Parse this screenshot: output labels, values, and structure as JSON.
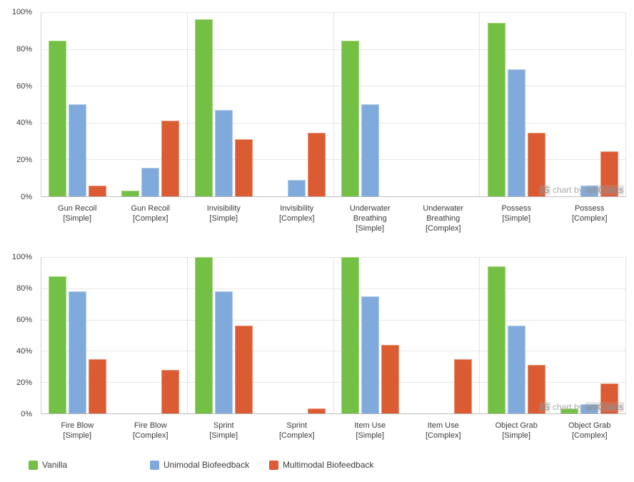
{
  "colors": {
    "vanilla": "#74C044",
    "vanilla_border": "#A2D77D",
    "unimodal": "#80AADB",
    "unimodal_border": "#B0CCEB",
    "multimodal": "#DB5B33",
    "multimodal_border": "#EA9473"
  },
  "legend": [
    {
      "label": "Vanilla",
      "color": "#74C044"
    },
    {
      "label": "Unimodal Biofeedback",
      "color": "#80AADB"
    },
    {
      "label": "Multimodal Biofeedback",
      "color": "#DB5B33"
    }
  ],
  "watermark": {
    "prefix": "JS",
    "middle": " chart by ",
    "suffix": "amCharts"
  },
  "y_axis": {
    "tick_labels": [
      "0%",
      "20%",
      "40%",
      "60%",
      "80%",
      "100%"
    ],
    "tick_step": 20
  },
  "chart_data": [
    {
      "type": "bar",
      "title": "",
      "xlabel": "",
      "ylabel": "",
      "ylim": [
        0,
        100
      ],
      "tick_step": 20,
      "tick_suffix": "%",
      "grid": true,
      "group_separator_every": 2,
      "legend_position": "bottom",
      "categories": [
        "Gun Recoil\n[Simple]",
        "Gun Recoil\n[Complex]",
        "Invisibility\n[Simple]",
        "Invisibility\n[Complex]",
        "Underwater\nBreathing\n[Simple]",
        "Underwater\nBreathing\n[Complex]",
        "Possess\n[Simple]",
        "Possess\n[Complex]"
      ],
      "series": [
        {
          "name": "Vanilla",
          "color": "#74C044",
          "border": "#A2D77D",
          "values": [
            84.5,
            3,
            96,
            0,
            84.5,
            0,
            94,
            0
          ]
        },
        {
          "name": "Unimodal Biofeedback",
          "color": "#80AADB",
          "border": "#B0CCEB",
          "values": [
            50,
            15.5,
            47,
            9,
            50,
            0,
            69,
            6
          ]
        },
        {
          "name": "Multimodal Biofeedback",
          "color": "#DB5B33",
          "border": "#EA9473",
          "values": [
            6,
            41,
            31,
            34.5,
            0,
            0,
            34.5,
            24.5
          ]
        }
      ]
    },
    {
      "type": "bar",
      "title": "",
      "xlabel": "",
      "ylabel": "",
      "ylim": [
        0,
        100
      ],
      "tick_step": 20,
      "tick_suffix": "%",
      "grid": true,
      "group_separator_every": 2,
      "legend_position": "bottom",
      "categories": [
        "Fire Blow\n[Simple]",
        "Fire Blow\n[Complex]",
        "Sprint\n[Simple]",
        "Sprint\n[Complex]",
        "Item Use\n[Simple]",
        "Item Use\n[Complex]",
        "Object Grab\n[Simple]",
        "Object Grab\n[Complex]"
      ],
      "series": [
        {
          "name": "Vanilla",
          "color": "#74C044",
          "border": "#A2D77D",
          "values": [
            87.5,
            0,
            100,
            0,
            100,
            0,
            94,
            3
          ]
        },
        {
          "name": "Unimodal Biofeedback",
          "color": "#80AADB",
          "border": "#B0CCEB",
          "values": [
            78,
            0,
            78,
            0,
            75,
            0,
            56,
            6
          ]
        },
        {
          "name": "Multimodal Biofeedback",
          "color": "#DB5B33",
          "border": "#EA9473",
          "values": [
            34.5,
            28,
            56,
            3,
            44,
            34.5,
            31,
            19
          ]
        }
      ]
    }
  ]
}
